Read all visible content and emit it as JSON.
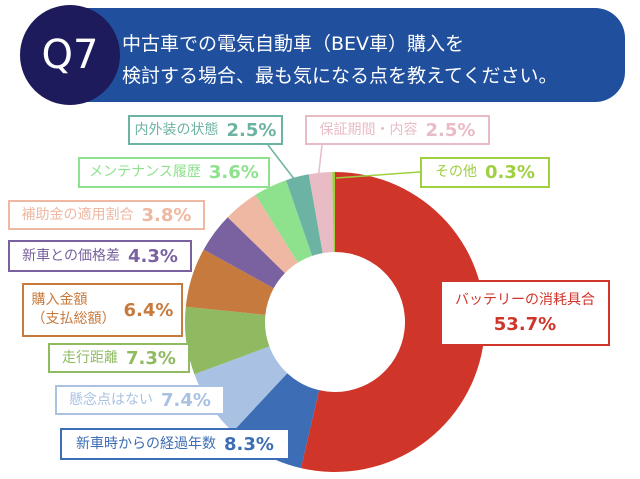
{
  "header": {
    "badge": "Q7",
    "title": "中古車での電気自動車（BEV車）購入を\n検討する場合、最も気になる点を教えてください。"
  },
  "chart_data": {
    "type": "donut",
    "categories": [
      "バッテリーの消耗具合",
      "新車時からの経過年数",
      "懸念点はない",
      "走行距離",
      "購入金額\n（支払総額）",
      "新車との価格差",
      "補助金の適用割合",
      "メンテナンス履歴",
      "内外装の状態",
      "保証期間・内容",
      "その他"
    ],
    "values": [
      53.7,
      8.3,
      7.4,
      7.3,
      6.4,
      4.3,
      3.8,
      3.6,
      2.5,
      2.5,
      0.3
    ],
    "value_labels": [
      "53.7%",
      "8.3%",
      "7.4%",
      "7.3%",
      "6.4%",
      "4.3%",
      "3.8%",
      "3.6%",
      "2.5%",
      "2.5%",
      "0.3%"
    ],
    "colors": [
      "#d0352a",
      "#3d6db4",
      "#a9c1e2",
      "#8fba62",
      "#c77a3e",
      "#7a62a0",
      "#eeb8a2",
      "#8ee28e",
      "#6db3a3",
      "#e9bcc5",
      "#9fd040"
    ]
  }
}
